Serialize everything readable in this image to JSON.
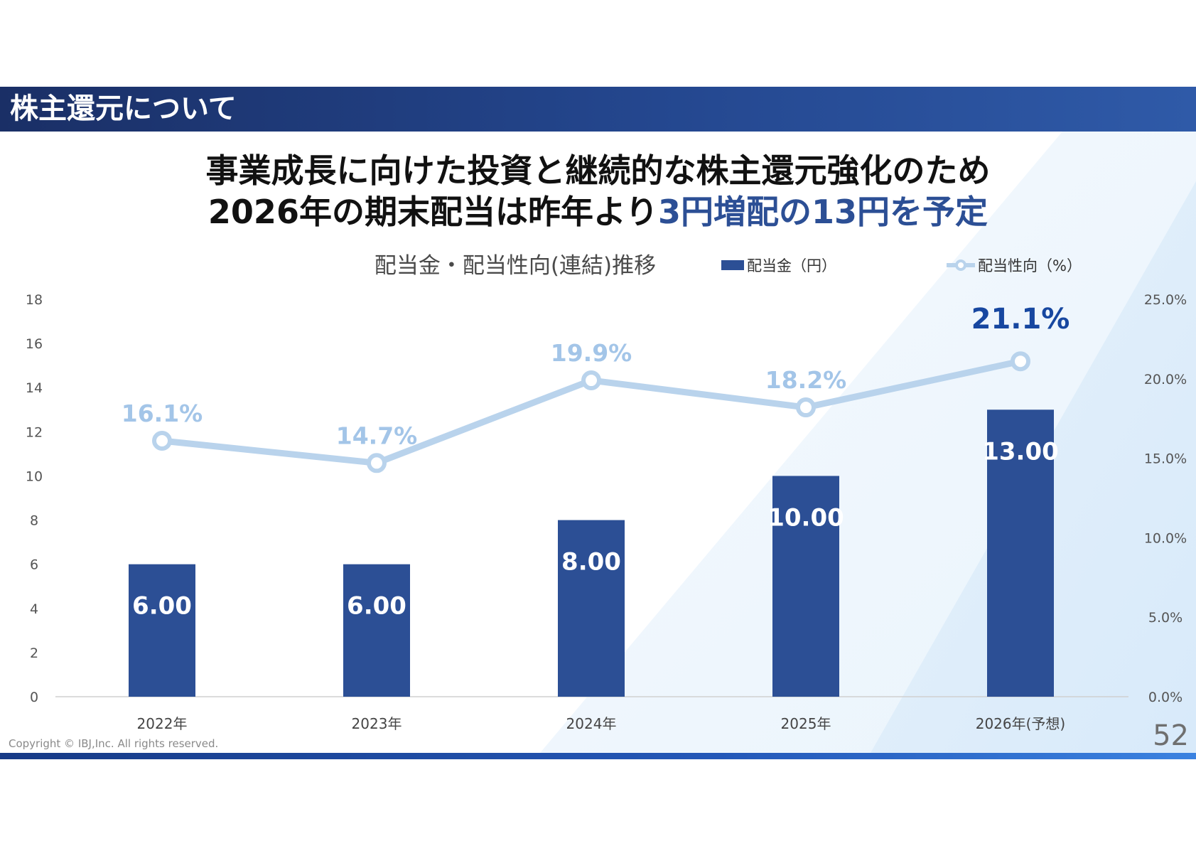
{
  "header": {
    "title": "株主還元について"
  },
  "headline": {
    "line1": "事業成長に向けた投資と継続的な株主還元強化のため",
    "line2_prefix": "2026年の期末配当は昨年より",
    "line2_highlight": "3円増配の13円を予定"
  },
  "colors": {
    "header_bg": "#1f3c7a",
    "bar": "#2c4f95",
    "line": "#b9d3ec",
    "line_label": "#a3c5e8",
    "highlight_label": "#1747a0",
    "headline_highlight": "#2c4f95"
  },
  "chart_data": {
    "type": "bar+line",
    "title": "配当金・配当性向(連結)推移",
    "categories": [
      "2022年",
      "2023年",
      "2024年",
      "2025年",
      "2026年(予想)"
    ],
    "series": [
      {
        "name": "配当金（円）",
        "type": "bar",
        "axis": "left",
        "values": [
          6.0,
          6.0,
          8.0,
          10.0,
          13.0
        ],
        "labels": [
          "6.00",
          "6.00",
          "8.00",
          "10.00",
          "13.00"
        ]
      },
      {
        "name": "配当性向（%）",
        "type": "line",
        "axis": "right",
        "values": [
          16.1,
          14.7,
          19.9,
          18.2,
          21.1
        ],
        "labels": [
          "16.1%",
          "14.7%",
          "19.9%",
          "18.2%",
          "21.1%"
        ]
      }
    ],
    "y_left": {
      "min": 0,
      "max": 18,
      "ticks": [
        "0",
        "2",
        "4",
        "6",
        "8",
        "10",
        "12",
        "14",
        "16",
        "18"
      ]
    },
    "y_right": {
      "min": 0,
      "max": 25,
      "ticks": [
        "0.0%",
        "5.0%",
        "10.0%",
        "15.0%",
        "20.0%",
        "25.0%"
      ]
    },
    "grid": false,
    "legend_position": "top-right",
    "highlight_index": 4
  },
  "footer": {
    "copyright": "Copyright © IBJ,Inc. All rights reserved.",
    "page_number": "52"
  }
}
